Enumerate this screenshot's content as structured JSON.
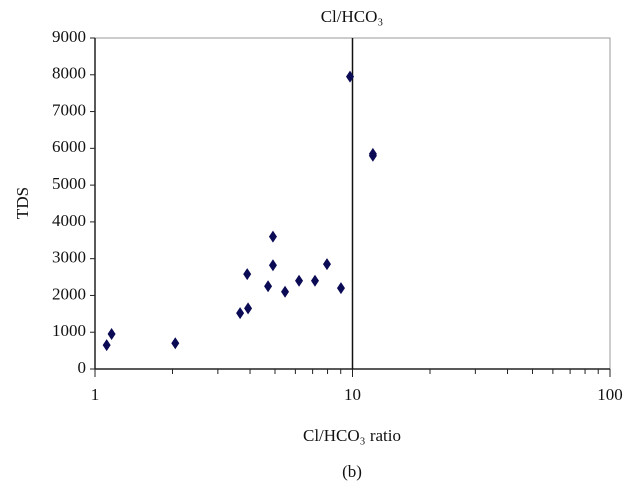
{
  "chart_data": {
    "type": "scatter",
    "title": "Cl/HCO₃",
    "x_label": "Cl/HCO₃ ratio",
    "y_label": "TDS",
    "caption": "(b)",
    "x_scale": "log",
    "color": "#0b0b55",
    "marker": "diamond",
    "x": [
      1.11,
      1.16,
      2.05,
      3.66,
      3.93,
      3.9,
      4.7,
      4.91,
      4.91,
      5.47,
      6.2,
      7.15,
      7.96,
      9.02,
      9.78,
      12.0,
      12.0
    ],
    "y": [
      650,
      950,
      700,
      1520,
      1650,
      2580,
      2250,
      3600,
      2820,
      2100,
      2400,
      2400,
      2850,
      2200,
      7950,
      5850,
      5800
    ],
    "xlim": [
      1,
      100
    ],
    "ylim": [
      0,
      9000
    ],
    "xticks": [
      1,
      10,
      100
    ],
    "xminorticks": [
      2,
      3,
      4,
      5,
      6,
      7,
      8,
      9,
      20,
      30,
      40,
      50,
      60,
      70,
      80,
      90
    ],
    "yticks": [
      0,
      1000,
      2000,
      3000,
      4000,
      5000,
      6000,
      7000,
      8000,
      9000
    ],
    "reference_line_x": 10
  }
}
